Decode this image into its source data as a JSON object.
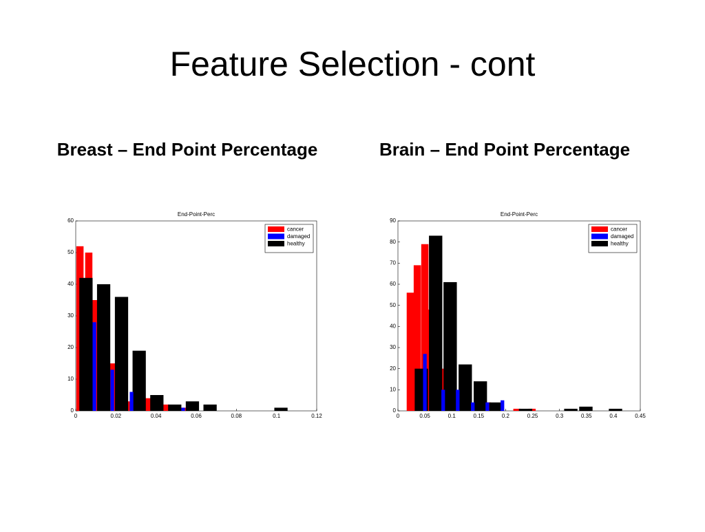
{
  "slide": {
    "title": "Feature Selection - cont",
    "headings": [
      "Breast – End Point Percentage",
      "Brain – End Point Percentage"
    ]
  },
  "chart_data": [
    {
      "type": "bar",
      "title": "End-Point-Perc",
      "legend": "upper right",
      "xlim": [
        0,
        0.12
      ],
      "xticks": [
        0,
        0.02,
        0.04,
        0.06,
        0.08,
        0.1,
        0.12
      ],
      "ylim": [
        0,
        60
      ],
      "yticks": [
        0,
        10,
        20,
        30,
        40,
        50,
        60
      ],
      "series": [
        {
          "name": "cancer",
          "color": "#ff0000",
          "x": [
            0.0021,
            0.0065,
            0.0093,
            0.0182,
            0.0267,
            0.036,
            0.0446,
            0.0531
          ],
          "values": [
            52,
            50,
            35,
            15,
            3,
            4,
            2,
            1
          ]
        },
        {
          "name": "damaged",
          "color": "#0000ff",
          "x": [
            0.0093,
            0.0182,
            0.0278,
            0.0535
          ],
          "values": [
            28,
            13,
            6,
            1
          ]
        },
        {
          "name": "healthy",
          "color": "#000000",
          "x": [
            0.0051,
            0.0139,
            0.0228,
            0.0316,
            0.0404,
            0.0493,
            0.0581,
            0.0669,
            0.1022
          ],
          "values": [
            42,
            40,
            36,
            19,
            5,
            2,
            3,
            2,
            1
          ]
        }
      ]
    },
    {
      "type": "bar",
      "title": "End-Point-Perc",
      "legend": "upper right",
      "xlim": [
        0,
        0.45
      ],
      "xticks": [
        0,
        0.05,
        0.1,
        0.15,
        0.2,
        0.25,
        0.3,
        0.35,
        0.4,
        0.45
      ],
      "ylim": [
        0,
        90
      ],
      "yticks": [
        0,
        10,
        20,
        30,
        40,
        50,
        60,
        70,
        80,
        90
      ],
      "series": [
        {
          "name": "cancer",
          "color": "#ff0000",
          "x": [
            0.023,
            0.036,
            0.05,
            0.059,
            0.084,
            0.166,
            0.221,
            0.249
          ],
          "values": [
            56,
            69,
            79,
            48,
            20,
            4,
            1,
            1
          ]
        },
        {
          "name": "damaged",
          "color": "#0000ff",
          "x": [
            0.05,
            0.084,
            0.111,
            0.139,
            0.166,
            0.194
          ],
          "values": [
            27,
            10,
            10,
            4,
            4,
            5
          ]
        },
        {
          "name": "healthy",
          "color": "#000000",
          "x": [
            0.0435,
            0.07,
            0.097,
            0.125,
            0.153,
            0.182,
            0.237,
            0.321,
            0.349,
            0.404
          ],
          "values": [
            20,
            83,
            61,
            22,
            14,
            4,
            1,
            1,
            2,
            1
          ]
        }
      ]
    }
  ]
}
